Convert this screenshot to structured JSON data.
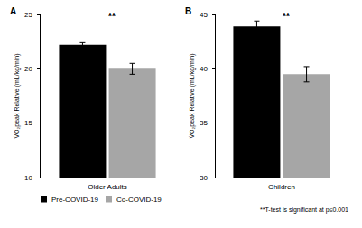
{
  "chart_data": [
    {
      "type": "bar",
      "title": "A",
      "categories": [
        "Older Adults"
      ],
      "ylabel": "V̇O₂peak Relative (mL/kg/min)",
      "ylim": [
        10,
        25
      ],
      "yticks": [
        10,
        15,
        20,
        25
      ],
      "grid": false,
      "legend": "bottom",
      "annotation": "**",
      "series": [
        {
          "name": "Pre-COVID-19",
          "color": "#000000",
          "values": [
            22.2
          ],
          "errors": [
            0.2
          ]
        },
        {
          "name": "Co-COVID-19",
          "color": "#a6a6a6",
          "values": [
            20.0
          ],
          "errors": [
            0.5
          ]
        }
      ]
    },
    {
      "type": "bar",
      "title": "B",
      "categories": [
        "Children"
      ],
      "ylabel": "V̇O₂peak Relative (mL/kg/min)",
      "ylim": [
        30,
        45
      ],
      "yticks": [
        30,
        35,
        40,
        45
      ],
      "grid": false,
      "annotation": "**",
      "note": "**T-test is significant at p≤0.001",
      "series": [
        {
          "name": "Pre-COVID-19",
          "color": "#000000",
          "values": [
            43.9
          ],
          "errors": [
            0.5
          ]
        },
        {
          "name": "Co-COVID-19",
          "color": "#a6a6a6",
          "values": [
            39.5
          ],
          "errors": [
            0.7
          ]
        }
      ]
    }
  ]
}
